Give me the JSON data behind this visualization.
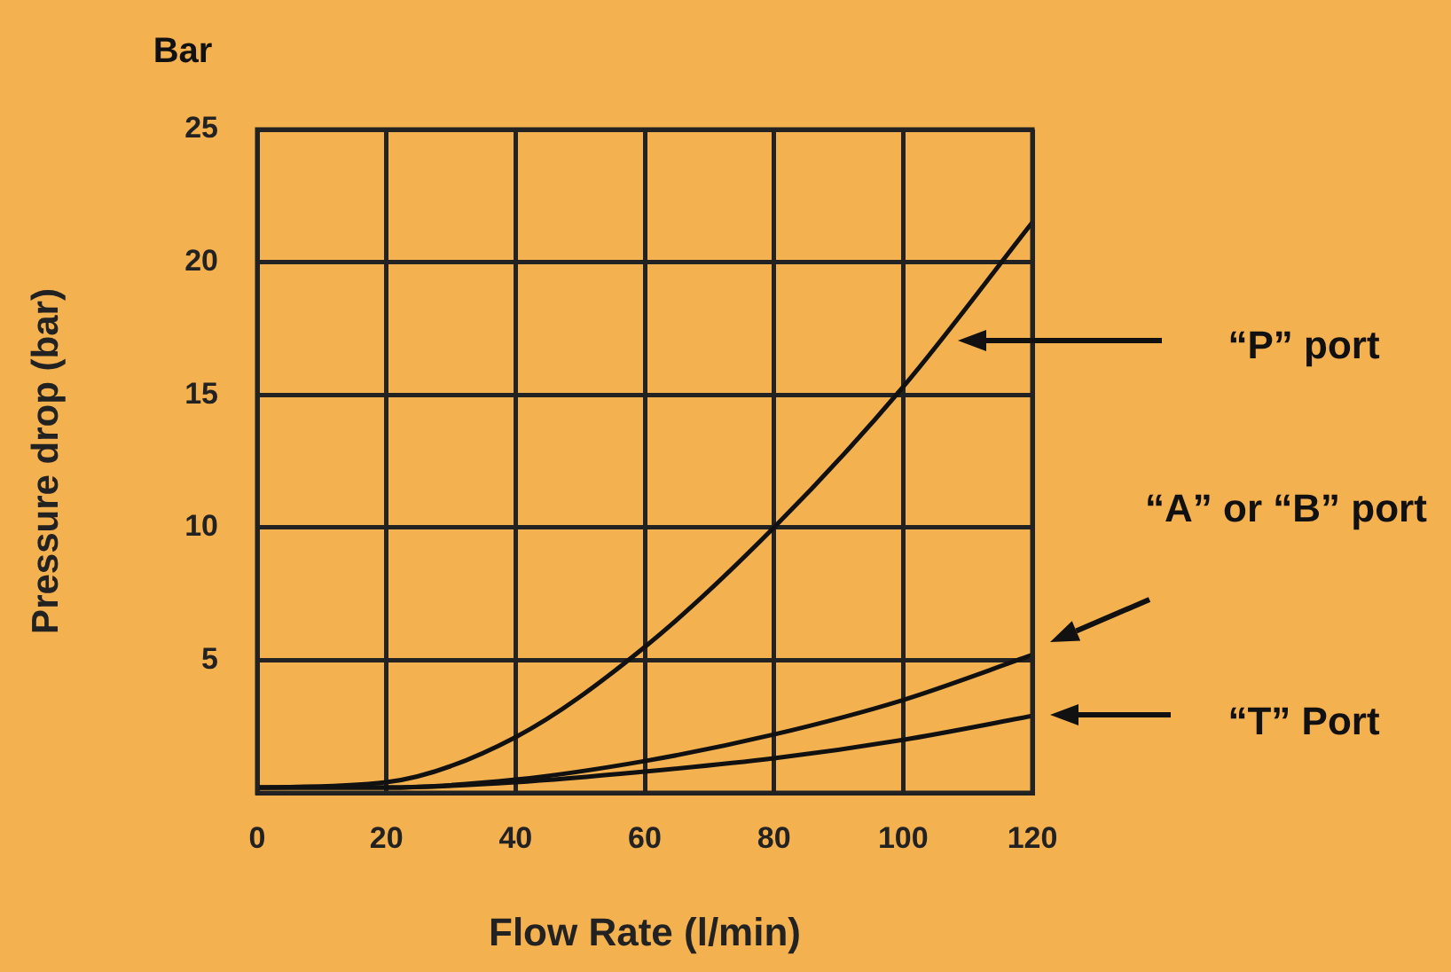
{
  "chart_data": {
    "type": "line",
    "xlabel": "Flow Rate (l/min)",
    "ylabel": "Pressure drop (bar)",
    "x": [
      0,
      20,
      40,
      60,
      80,
      100,
      120
    ],
    "series": [
      {
        "color": "#111111",
        "values": [
          0.2,
          0.4,
          2.1,
          5.5,
          10,
          15.3,
          21.5
        ]
      },
      {
        "color": "#111111",
        "values": [
          0.2,
          0.2,
          0.5,
          1.2,
          2.2,
          3.5,
          5.2
        ]
      },
      {
        "color": "#111111",
        "values": [
          0.2,
          0.2,
          0.4,
          0.8,
          1.3,
          2.0,
          2.9
        ]
      }
    ],
    "xlim": [
      0,
      120
    ],
    "xticks": [
      0,
      20,
      40,
      60,
      80,
      100,
      120
    ],
    "ylim": [
      0,
      25
    ],
    "yticks": [
      {
        "value": 0,
        "label": null
      },
      5,
      10,
      15,
      20,
      25
    ],
    "grid": true,
    "legend": false,
    "marker": "none",
    "line_style": "solid",
    "annotations": [
      "Bar",
      "“P” port",
      "“A” or “B” port",
      "“T” Port"
    ]
  }
}
